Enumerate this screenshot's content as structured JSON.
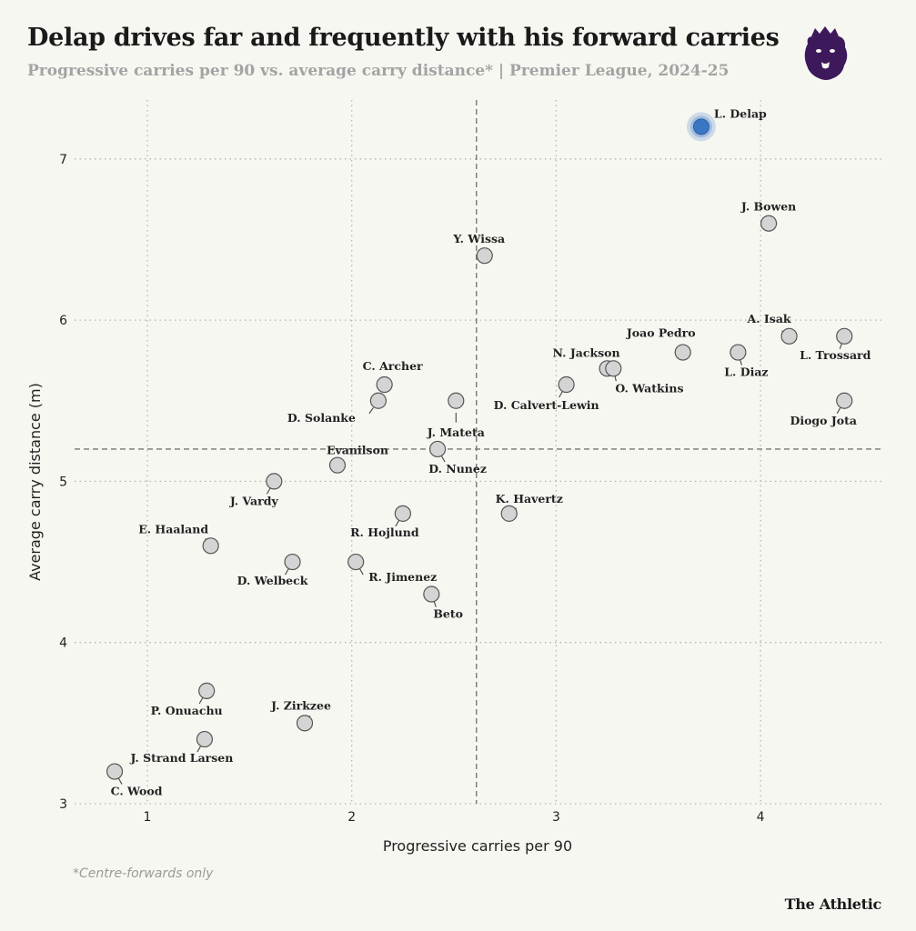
{
  "header": {
    "title": "Delap drives far and frequently with his forward carries",
    "subtitle": "Progressive carries per 90 vs. average carry distance* | Premier League, 2024-25"
  },
  "footer": {
    "footnote": "*Centre-forwards only",
    "brand": "The Athletic"
  },
  "colors": {
    "highlight": "#3b76c4",
    "point_fill": "#d4d4d4",
    "point_stroke": "#555555",
    "background": "#f7f7f2",
    "logo": "#3d195b"
  },
  "icons": {
    "logo": "premier-league-lion-icon"
  },
  "chart_data": {
    "type": "scatter",
    "title": "Delap drives far and frequently with his forward carries",
    "subtitle": "Progressive carries per 90 vs. average carry distance* | Premier League, 2024-25",
    "xlabel": "Progressive carries per 90",
    "ylabel": "Average carry distance (m)",
    "xlim": [
      0.6,
      4.6
    ],
    "ylim": [
      2.95,
      7.5
    ],
    "xticks": [
      1,
      2,
      3,
      4
    ],
    "yticks": [
      3,
      4,
      5,
      6,
      7
    ],
    "reference_lines": {
      "x": 2.61,
      "y": 5.2
    },
    "grid": true,
    "points": [
      {
        "name": "L. Delap",
        "x": 3.71,
        "y": 7.2,
        "highlight": true
      },
      {
        "name": "J. Bowen",
        "x": 4.04,
        "y": 6.6
      },
      {
        "name": "Y. Wissa",
        "x": 2.65,
        "y": 6.4
      },
      {
        "name": "A. Isak",
        "x": 4.14,
        "y": 5.9
      },
      {
        "name": "L. Trossard",
        "x": 4.41,
        "y": 5.9
      },
      {
        "name": "Joao Pedro",
        "x": 3.62,
        "y": 5.8
      },
      {
        "name": "L. Diaz",
        "x": 3.89,
        "y": 5.8
      },
      {
        "name": "N. Jackson",
        "x": 3.25,
        "y": 5.7
      },
      {
        "name": "O. Watkins",
        "x": 3.28,
        "y": 5.7
      },
      {
        "name": "D. Calvert-Lewin",
        "x": 3.05,
        "y": 5.6
      },
      {
        "name": "Diogo Jota",
        "x": 4.41,
        "y": 5.5
      },
      {
        "name": "C. Archer",
        "x": 2.16,
        "y": 5.6
      },
      {
        "name": "D. Solanke",
        "x": 2.13,
        "y": 5.5
      },
      {
        "name": "J. Mateta",
        "x": 2.51,
        "y": 5.5
      },
      {
        "name": "D. Nunez",
        "x": 2.42,
        "y": 5.2
      },
      {
        "name": "Evanilson",
        "x": 1.93,
        "y": 5.1
      },
      {
        "name": "J. Vardy",
        "x": 1.62,
        "y": 5.0
      },
      {
        "name": "K. Havertz",
        "x": 2.77,
        "y": 4.8
      },
      {
        "name": "R. Hojlund",
        "x": 2.25,
        "y": 4.8
      },
      {
        "name": "E. Haaland",
        "x": 1.31,
        "y": 4.6
      },
      {
        "name": "D. Welbeck",
        "x": 1.71,
        "y": 4.5
      },
      {
        "name": "R. Jimenez",
        "x": 2.02,
        "y": 4.5
      },
      {
        "name": "Beto",
        "x": 2.39,
        "y": 4.3
      },
      {
        "name": "P. Onuachu",
        "x": 1.29,
        "y": 3.7
      },
      {
        "name": "J. Zirkzee",
        "x": 1.77,
        "y": 3.5
      },
      {
        "name": "J. Strand Larsen",
        "x": 1.28,
        "y": 3.4
      },
      {
        "name": "C. Wood",
        "x": 0.84,
        "y": 3.2
      }
    ]
  }
}
